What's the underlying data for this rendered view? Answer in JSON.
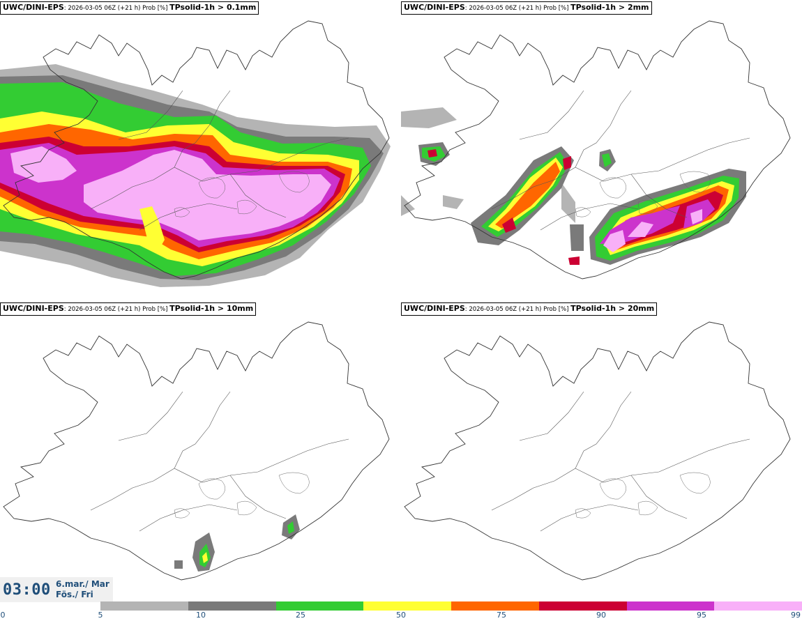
{
  "panels": [
    {
      "model": "UWC/DINI-EPS",
      "meta": ": 2026-03-05 06Z (+21 h) Prob [%] ",
      "variable": "TPsolid-1h > 0.1mm"
    },
    {
      "model": "UWC/DINI-EPS",
      "meta": ": 2026-03-05 06Z (+21 h) Prob [%] ",
      "variable": "TPsolid-1h > 2mm"
    },
    {
      "model": "UWC/DINI-EPS",
      "meta": ": 2026-03-05 06Z (+21 h) Prob [%] ",
      "variable": "TPsolid-1h > 10mm"
    },
    {
      "model": "UWC/DINI-EPS",
      "meta": ": 2026-03-05 06Z (+21 h) Prob [%] ",
      "variable": "TPsolid-1h > 20mm"
    }
  ],
  "timestamp": {
    "time": "03:00",
    "date": "6.mar./ Mar",
    "weekday": "Fös./ Fri"
  },
  "colorbar": {
    "labels": [
      "0",
      "5",
      "10",
      "25",
      "50",
      "75",
      "90",
      "95",
      "99"
    ],
    "colors": [
      "#b4b4b4",
      "#7a7a7a",
      "#33cc33",
      "#ffff33",
      "#ff6600",
      "#cc0033",
      "#cc33cc",
      "#f8b0f8"
    ]
  },
  "map_colors": {
    "gray_light": "#b4b4b4",
    "gray_dark": "#7a7a7a",
    "green": "#33cc33",
    "yellow": "#ffff33",
    "orange": "#ff6600",
    "red": "#cc0033",
    "magenta": "#cc33cc",
    "pink": "#f8b0f8"
  }
}
